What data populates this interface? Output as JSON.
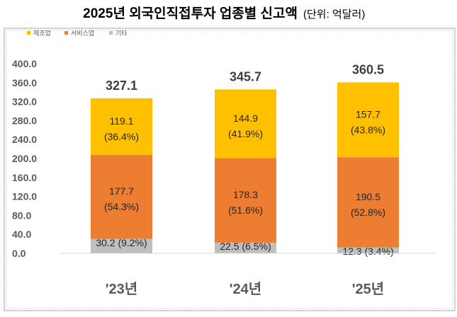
{
  "title": "2025년 외국인직접투자 업종별 신고액",
  "unit": "(단위: 억달러)",
  "chart_data": {
    "type": "bar",
    "stacked": true,
    "categories": [
      "'23년",
      "'24년",
      "'25년"
    ],
    "series": [
      {
        "name": "기타",
        "color": "#BFBFBF",
        "values": [
          30.2,
          22.5,
          12.3
        ],
        "labels": [
          "30.2 (9.2%)",
          "22.5 (6.5%)",
          "12.3 (3.4%)"
        ]
      },
      {
        "name": "서비스업",
        "color": "#ED7D31",
        "values": [
          177.7,
          178.3,
          190.5
        ],
        "labels": [
          [
            "177.7",
            "(54.3%)"
          ],
          [
            "178.3",
            "(51.6%)"
          ],
          [
            "190.5",
            "(52.8%)"
          ]
        ]
      },
      {
        "name": "제조업",
        "color": "#FFC000",
        "values": [
          119.1,
          144.9,
          157.7
        ],
        "labels": [
          [
            "119.1",
            "(36.4%)"
          ],
          [
            "144.9",
            "(41.9%)"
          ],
          [
            "157.7",
            "(43.8%)"
          ]
        ]
      }
    ],
    "totals": [
      "327.1",
      "345.7",
      "360.5"
    ],
    "legend_order": [
      "제조업",
      "서비스업",
      "기타"
    ],
    "legend_position": "top-left",
    "yticks": [
      "0.0",
      "40.0",
      "80.0",
      "120.0",
      "160.0",
      "200.0",
      "240.0",
      "280.0",
      "320.0",
      "360.0",
      "400.0"
    ],
    "ylim": [
      0,
      400
    ],
    "grid": false
  }
}
